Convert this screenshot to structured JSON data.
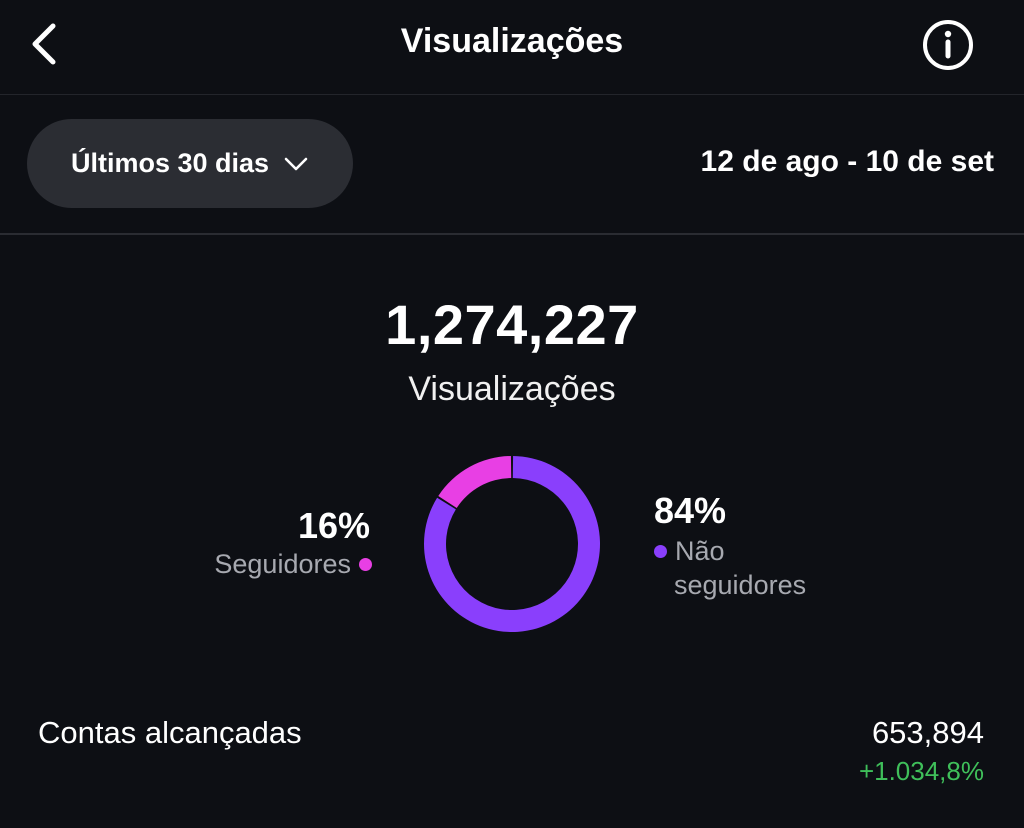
{
  "header": {
    "title": "Visualizações",
    "back_icon": "chevron-left-icon",
    "info_icon": "info-circle-icon"
  },
  "filter": {
    "period_label": "Últimos 30 dias",
    "dropdown_icon": "chevron-down-icon",
    "date_range": "12 de ago - 10 de set"
  },
  "summary": {
    "total": "1,274,227",
    "label": "Visualizações"
  },
  "chart_data": {
    "type": "pie",
    "categories": [
      "Seguidores",
      "Não seguidores"
    ],
    "values": [
      16,
      84
    ],
    "colors": [
      "#e83fe4",
      "#8a3ffc"
    ]
  },
  "legend": {
    "followers": {
      "percent": "16%",
      "label": "Seguidores",
      "color": "#e83fe4"
    },
    "non_followers": {
      "percent": "84%",
      "label_line1": "Não",
      "label_line2": "seguidores",
      "color": "#8a3ffc"
    }
  },
  "reach": {
    "label": "Contas alcançadas",
    "value": "653,894",
    "change": "+1.034,8%",
    "change_color": "#3fbf5a"
  }
}
